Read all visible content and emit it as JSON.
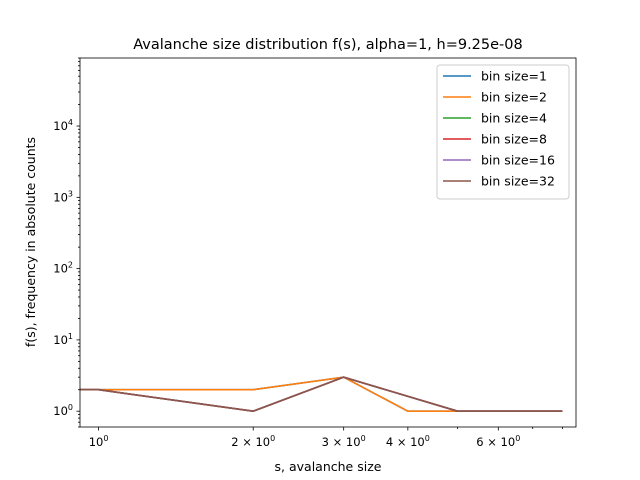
{
  "chart_data": {
    "type": "line",
    "title": "Avalanche size distribution f(s), alpha=1, h=9.25e-08",
    "xlabel": "s, avalanche size",
    "ylabel": "f(s), frequency in absolute counts",
    "xscale": "log",
    "yscale": "log",
    "xlim": [
      0.92,
      8.5
    ],
    "ylim": [
      0.6,
      90000
    ],
    "legend": "top-right",
    "grid": false,
    "x_ticks": [
      {
        "value": 1,
        "label": "10"
      },
      {
        "value": 2,
        "label": "2 × 10"
      },
      {
        "value": 3,
        "label": "3 × 10"
      },
      {
        "value": 4,
        "label": "4 × 10"
      },
      {
        "value": 6,
        "label": "6 × 10"
      }
    ],
    "x_tick_exponent": "0",
    "y_ticks": [
      {
        "value": 1,
        "label": "10",
        "exp": "0"
      },
      {
        "value": 10,
        "label": "10",
        "exp": "1"
      },
      {
        "value": 100,
        "label": "10",
        "exp": "2"
      },
      {
        "value": 1000,
        "label": "10",
        "exp": "3"
      },
      {
        "value": 10000,
        "label": "10",
        "exp": "4"
      }
    ],
    "series": [
      {
        "name": "bin size=1",
        "color": "#1f77b4",
        "x": [
          0.85,
          1,
          2,
          3,
          4,
          5,
          8
        ],
        "y": [
          2,
          2,
          2,
          3,
          1,
          1,
          1
        ]
      },
      {
        "name": "bin size=2",
        "color": "#ff7f0e",
        "x": [
          0.85,
          1,
          2,
          3,
          4,
          5,
          8
        ],
        "y": [
          2,
          2,
          2,
          3,
          1,
          1,
          1
        ]
      },
      {
        "name": "bin size=4",
        "color": "#2ca02c",
        "x": [
          0.85,
          1,
          2,
          3,
          5,
          8
        ],
        "y": [
          2,
          2,
          1,
          3,
          1,
          1
        ]
      },
      {
        "name": "bin size=8",
        "color": "#d62728",
        "x": [
          0.85,
          1,
          2,
          3,
          5,
          8
        ],
        "y": [
          2,
          2,
          1,
          3,
          1,
          1
        ]
      },
      {
        "name": "bin size=16",
        "color": "#9467bd",
        "x": [
          0.85,
          1,
          2,
          3,
          5,
          8
        ],
        "y": [
          2,
          2,
          1,
          3,
          1,
          1
        ]
      },
      {
        "name": "bin size=32",
        "color": "#8c564b",
        "x": [
          0.85,
          1,
          2,
          3,
          5,
          8
        ],
        "y": [
          2,
          2,
          1,
          3,
          1,
          1
        ]
      }
    ]
  }
}
